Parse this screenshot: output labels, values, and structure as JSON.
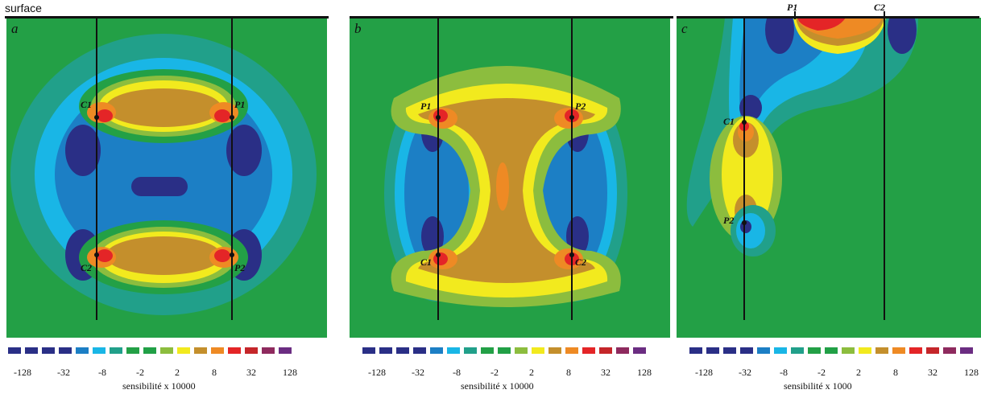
{
  "figure": {
    "top_label": "surface",
    "panels": [
      {
        "letter": "a",
        "electrodes": [
          "C1",
          "P1",
          "C2",
          "P2"
        ]
      },
      {
        "letter": "b",
        "electrodes": [
          "P1",
          "P2",
          "C1",
          "C2"
        ]
      },
      {
        "letter": "c",
        "electrodes": [
          "P1",
          "C2",
          "C1",
          "P2"
        ]
      }
    ]
  },
  "legends": [
    {
      "title": "sensibilité  x 10000",
      "ticks": [
        "-128",
        "-32",
        "-8",
        "-2",
        "2",
        "8",
        "32",
        "128"
      ]
    },
    {
      "title": "sensibilité  x 10000",
      "ticks": [
        "-128",
        "-32",
        "-8",
        "-2",
        "2",
        "8",
        "32",
        "128"
      ]
    },
    {
      "title": "sensibilité  x 1000",
      "ticks": [
        "-128",
        "-32",
        "-8",
        "-2",
        "2",
        "8",
        "32",
        "128"
      ]
    }
  ],
  "colors": {
    "background": "#23a046",
    "scale": [
      "#2a2f86",
      "#2a2f86",
      "#2a2f86",
      "#2a2f86",
      "#1c7fc5",
      "#19b6e6",
      "#21a08a",
      "#23a046",
      "#21a046",
      "#8cbd3e",
      "#f2ea1e",
      "#c48f2c",
      "#ee8a24",
      "#e42527",
      "#c5262a",
      "#8e2a5e",
      "#6b2d82"
    ]
  }
}
